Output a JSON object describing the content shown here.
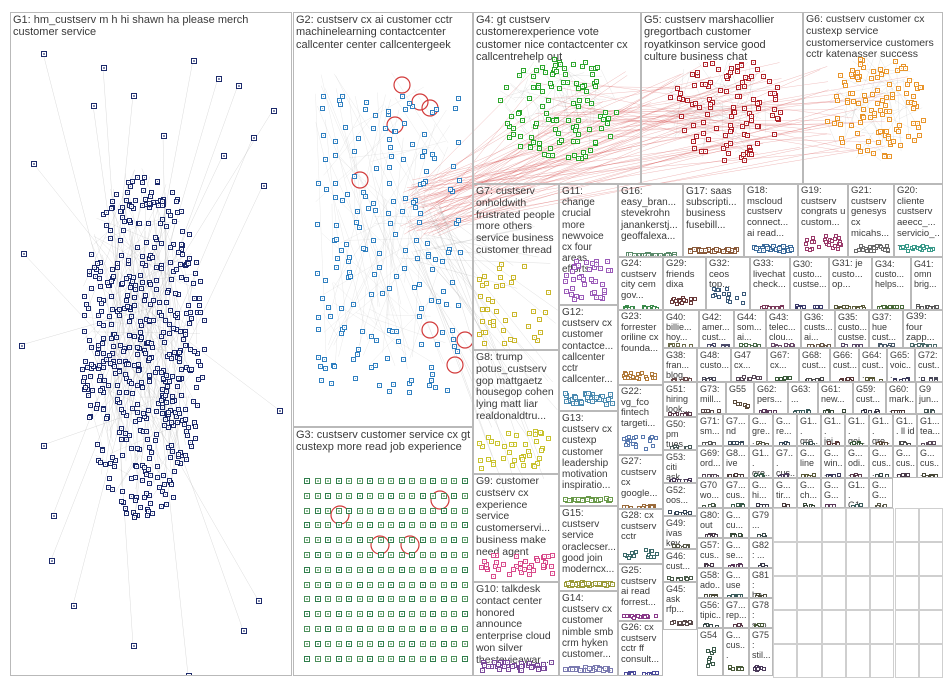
{
  "colors": {
    "border": "#b9b9b9",
    "text": "#3a3a3a",
    "edge_gray": "#9a9a9a",
    "edge_red": "#d23a3a"
  },
  "groups": [
    {
      "id": "G1",
      "label": "G1: hm_custserv m h hi shawn ha please merch customer service",
      "color": "#1c2a6b",
      "icon": "user-avatar-icon"
    },
    {
      "id": "G2",
      "label": "G2: custserv cx ai customer cctr machinelearning contactcenter callcenter center callcentergeek",
      "color": "#2f7fc0",
      "icon": "user-avatar-icon"
    },
    {
      "id": "G3",
      "label": "G3: custserv customer service cx gt custexp more read job experience",
      "color": "#2e7d4a",
      "icon": "user-avatar-icon"
    },
    {
      "id": "G4",
      "label": "G4: gt custserv customerexperience vote customer nice contactcenter cx callcentrehelp out",
      "color": "#2aa52a",
      "icon": "user-avatar-icon"
    },
    {
      "id": "G5",
      "label": "G5: custserv marshacollier gregortbach customer royatkinson service good culture business chat",
      "color": "#b0232a",
      "icon": "user-avatar-icon"
    },
    {
      "id": "G6",
      "label": "G6: custserv customer cx custexp service customerservice customers cctr katenasser success",
      "color": "#e8942a",
      "icon": "user-avatar-icon"
    },
    {
      "id": "G7",
      "label": "G7: custserv onholdwith frustrated people more others service business customer thread",
      "color": "#c9b62a",
      "icon": "user-avatar-icon"
    },
    {
      "id": "G8",
      "label": "G8: trump potus_custserv gop mattgaetz housegop cohen lying matt liar realdonaldtru...",
      "color": "#c8c22e",
      "icon": "user-avatar-icon"
    },
    {
      "id": "G9",
      "label": "G9: customer custserv cx experience service customerservi... business make need agent",
      "color": "#d84a8a",
      "icon": "user-avatar-icon"
    },
    {
      "id": "G10",
      "label": "G10: talkdesk contact center honored announce enterprise cloud won silver thestevieawar...",
      "color": "#7a4a9a",
      "icon": "user-avatar-icon"
    },
    {
      "id": "G11",
      "label": "G11: change crucial more newvoice cx four areas efforts",
      "color": "#9a5ab8",
      "icon": "user-avatar-icon"
    },
    {
      "id": "G12",
      "label": "G12: custserv cx customer contactce... callcenter cctr callcenter...",
      "color": "#4a8ab0",
      "icon": "user-avatar-icon"
    },
    {
      "id": "G13",
      "label": "G13: custserv cx custexp customer leadership motivation inspiratio...",
      "color": "#6a9a4a",
      "icon": "user-avatar-icon"
    },
    {
      "id": "G14",
      "label": "G14: custserv cx customer nimble smb crm hyken customer...",
      "color": "#7a7ab0",
      "icon": "user-avatar-icon"
    },
    {
      "id": "G15",
      "label": "G15: custserv service oraclecser... good join moderncx...",
      "color": "#9a9a3a",
      "icon": "user-avatar-icon"
    },
    {
      "id": "G16",
      "label": "G16: easy_bran... stevekrohn janankerstj... geoffalexa...",
      "color": "#5a8a6a",
      "icon": "user-avatar-icon"
    },
    {
      "id": "G17",
      "label": "G17: saas subscripti... business fusebill...",
      "color": "#8a5a3a",
      "icon": "user-avatar-icon"
    },
    {
      "id": "G18",
      "label": "G18: mscloud custserv connect... ai read...",
      "color": "#3a6a9a",
      "icon": "user-avatar-icon"
    },
    {
      "id": "G19",
      "label": "G19: custserv congrats u custom...",
      "color": "#9a3a6a",
      "icon": "user-avatar-icon"
    },
    {
      "id": "G20",
      "label": "G20: cliente custserv aeecc_... servicio_...",
      "color": "#3a9a8a",
      "icon": "user-avatar-icon"
    },
    {
      "id": "G21",
      "label": "G21: custserv genesys cx micahs...",
      "color": "#6a6a6a",
      "icon": "user-avatar-icon"
    },
    {
      "id": "G22",
      "label": "G22: vg_fco fintech targeti...",
      "color": "#5a7ab0",
      "icon": "user-avatar-icon"
    },
    {
      "id": "G23",
      "label": "G23: forrester oriline cx founda...",
      "color": "#b07a3a",
      "icon": "user-avatar-icon"
    },
    {
      "id": "G24",
      "label": "G24: custserv city cem gov...",
      "color": "#3a8a4a",
      "icon": "user-avatar-icon"
    },
    {
      "id": "G25",
      "label": "G25: custserv ai read forrest...",
      "color": "#8a3a8a",
      "icon": "user-avatar-icon"
    },
    {
      "id": "G26",
      "label": "G26: cx custserv cctr ff consult...",
      "color": "#4a4a9a",
      "icon": "user-avatar-icon"
    },
    {
      "id": "G27",
      "label": "G27: custserv cx google...",
      "color": "#9a6a3a",
      "icon": "user-avatar-icon"
    },
    {
      "id": "G28",
      "label": "G28: cx custserv cctr",
      "color": "#3a6a6a",
      "icon": "user-avatar-icon"
    },
    {
      "id": "G29",
      "label": "G29: friends dixa",
      "color": "#6a3a3a",
      "icon": "user-avatar-icon"
    },
    {
      "id": "G30",
      "label": "G30: custo... custse...",
      "color": "#3a3a6a",
      "icon": "user-avatar-icon"
    },
    {
      "id": "G31",
      "label": "G31: je custo... op...",
      "color": "#5a5a3a",
      "icon": "user-avatar-icon"
    },
    {
      "id": "G32",
      "label": "G32: ceos top...",
      "color": "#3a5a7a",
      "icon": "user-avatar-icon"
    },
    {
      "id": "G33",
      "label": "G33: livechat check...",
      "color": "#7a3a5a",
      "icon": "user-avatar-icon"
    },
    {
      "id": "G34",
      "label": "G34: custo... helps...",
      "color": "#4a6a3a",
      "icon": "user-avatar-icon"
    },
    {
      "id": "G35",
      "label": "G35: custo... custse...",
      "color": "#5a4a6a",
      "icon": "user-avatar-icon"
    },
    {
      "id": "G36",
      "label": "G36: custs... ai...",
      "color": "#6a5a4a",
      "icon": "user-avatar-icon"
    },
    {
      "id": "G37",
      "label": "G37: hue cust...",
      "color": "#4a5a6a",
      "icon": "user-avatar-icon"
    },
    {
      "id": "G38",
      "label": "G38: fran... blog...",
      "color": "#6a4a4a",
      "icon": "user-avatar-icon"
    },
    {
      "id": "G39",
      "label": "G39: four zapp...",
      "color": "#4a6a6a",
      "icon": "user-avatar-icon"
    },
    {
      "id": "G40",
      "label": "G40: billie... hoy...",
      "color": "#6a6a4a",
      "icon": "user-avatar-icon"
    },
    {
      "id": "G41",
      "label": "G41: omn brig...",
      "color": "#5a5a5a",
      "icon": "user-avatar-icon"
    },
    {
      "id": "G42",
      "label": "G42: amer... cust...",
      "color": "#4a4a6a",
      "icon": "user-avatar-icon"
    },
    {
      "id": "G43",
      "label": "G43: telec... clou...",
      "color": "#6a4a6a",
      "icon": "user-avatar-icon"
    },
    {
      "id": "G44",
      "label": "G44: som... ai...",
      "color": "#4a6a4a",
      "icon": "user-avatar-icon"
    },
    {
      "id": "G45",
      "label": "G45: ask rfp...",
      "color": "#5a4a4a",
      "icon": "user-avatar-icon"
    },
    {
      "id": "G46",
      "label": "G46: cust...",
      "color": "#4a5a4a",
      "icon": "user-avatar-icon"
    },
    {
      "id": "G47",
      "label": "G47 cx...",
      "color": "#5a4a5a",
      "icon": "user-avatar-icon"
    },
    {
      "id": "G48",
      "label": "G48: custo...",
      "color": "#4a4a5a",
      "icon": "user-avatar-icon"
    },
    {
      "id": "G49",
      "label": "G49: ivas key...",
      "color": "#5a5a4a",
      "icon": "user-avatar-icon"
    },
    {
      "id": "G50",
      "label": "G50: pm tues...",
      "color": "#4a5a5a",
      "icon": "user-avatar-icon"
    },
    {
      "id": "G51",
      "label": "G51: hiring look...",
      "color": "#5a3a4a",
      "icon": "user-avatar-icon"
    },
    {
      "id": "G52",
      "label": "G52: oos...",
      "color": "#3a4a5a",
      "icon": "user-avatar-icon"
    },
    {
      "id": "G53",
      "label": "G53: citi ask...",
      "color": "#4a3a5a",
      "icon": "user-avatar-icon"
    },
    {
      "id": "G54",
      "label": "G54",
      "color": "#3a5a4a",
      "icon": "user-avatar-icon"
    },
    {
      "id": "G55",
      "label": "G55",
      "color": "#5a4a3a",
      "icon": "user-avatar-icon"
    },
    {
      "id": "G56",
      "label": "G56: tipic...",
      "color": "#3a4a4a",
      "icon": "user-avatar-icon"
    },
    {
      "id": "G57",
      "label": "G57: cus...",
      "color": "#4a3a4a",
      "icon": "user-avatar-icon"
    },
    {
      "id": "G58",
      "label": "G58: ado...",
      "color": "#4a4a3a",
      "icon": "user-avatar-icon"
    },
    {
      "id": "G59",
      "label": "G59: cust...",
      "color": "#3a3a4a",
      "icon": "user-avatar-icon"
    },
    {
      "id": "G60",
      "label": "G60: mark...",
      "color": "#4a3a3a",
      "icon": "user-avatar-icon"
    },
    {
      "id": "G61",
      "label": "G61: new...",
      "color": "#3a4a3a",
      "icon": "user-avatar-icon"
    },
    {
      "id": "G62",
      "label": "G62: pers...",
      "color": "#5a3a5a",
      "icon": "user-avatar-icon"
    },
    {
      "id": "G63",
      "label": "G63: ...",
      "color": "#3a5a5a",
      "icon": "user-avatar-icon"
    },
    {
      "id": "G64",
      "label": "G64: cust...",
      "color": "#5a5a3a",
      "icon": "user-avatar-icon"
    },
    {
      "id": "G65",
      "label": "G65: voic...",
      "color": "#3a3a5a",
      "icon": "user-avatar-icon"
    },
    {
      "id": "G66",
      "label": "G66: cust...",
      "color": "#5a3a3a",
      "icon": "user-avatar-icon"
    },
    {
      "id": "G67",
      "label": "G67: cx...",
      "color": "#3a5a3a",
      "icon": "user-avatar-icon"
    },
    {
      "id": "G68",
      "label": "G68: cust...",
      "color": "#4a4a4a",
      "icon": "user-avatar-icon"
    },
    {
      "id": "G69",
      "label": "G69: ord...",
      "color": "#5a4a5a",
      "icon": "user-avatar-icon"
    },
    {
      "id": "G70",
      "label": "G70 wo...",
      "color": "#4a5a4a",
      "icon": "user-avatar-icon"
    },
    {
      "id": "G71",
      "label": "G71: sm...",
      "color": "#5a5a5a",
      "icon": "user-avatar-icon"
    },
    {
      "id": "G72",
      "label": "G72: cust...",
      "color": "#4a4a5a",
      "icon": "user-avatar-icon"
    },
    {
      "id": "G73",
      "label": "G73: mill...",
      "color": "#5a4a4a",
      "icon": "user-avatar-icon"
    },
    {
      "id": "G74",
      "label": "G7... nd",
      "color": "#3a4a5a",
      "icon": "user-avatar-icon"
    },
    {
      "id": "G75",
      "label": "G75: stil...",
      "color": "#4a3a5a",
      "icon": "user-avatar-icon"
    },
    {
      "id": "G76",
      "label": "G7... cus...",
      "color": "#3a5a4a",
      "icon": "user-avatar-icon"
    },
    {
      "id": "G77",
      "label": "G7... rep...",
      "color": "#5a3a4a",
      "icon": "user-avatar-icon"
    },
    {
      "id": "G78",
      "label": "G78: sup...",
      "color": "#4a5a3a",
      "icon": "user-avatar-icon"
    },
    {
      "id": "G79",
      "label": "G79 ...",
      "color": "#3a4a4a",
      "icon": "user-avatar-icon"
    },
    {
      "id": "G80",
      "label": "G80: out",
      "color": "#4a3a4a",
      "icon": "user-avatar-icon"
    },
    {
      "id": "G81",
      "label": "G81: ba...",
      "color": "#4a4a3a",
      "icon": "user-avatar-icon"
    },
    {
      "id": "G82",
      "label": "G82: ...",
      "color": "#3a3a4a",
      "icon": "user-avatar-icon"
    },
    {
      "id": "G83",
      "label": "G8... ive",
      "color": "#4a3a3a",
      "icon": "user-avatar-icon"
    },
    {
      "id": "G84",
      "label": "G... cu...",
      "color": "#3a4a3a",
      "icon": "user-avatar-icon"
    },
    {
      "id": "G85",
      "label": "G... se...",
      "color": "#5a3a5a",
      "icon": "user-avatar-icon"
    },
    {
      "id": "G86",
      "label": "G... use",
      "color": "#3a5a5a",
      "icon": "user-avatar-icon"
    },
    {
      "id": "G87",
      "label": "G... gre...",
      "color": "#5a5a4a",
      "icon": "user-avatar-icon"
    },
    {
      "id": "G88",
      "label": "G1... gre...",
      "color": "#4a5a5a",
      "icon": "user-avatar-icon"
    },
    {
      "id": "G89",
      "label": "G1... gre...",
      "color": "#5a4a3a",
      "icon": "user-avatar-icon"
    },
    {
      "id": "G90",
      "label": "G... re...",
      "color": "#3a4a5a",
      "icon": "user-avatar-icon"
    },
    {
      "id": "G91",
      "label": "G... cus...",
      "color": "#4a5a3a",
      "icon": "user-avatar-icon"
    },
    {
      "id": "G92",
      "label": "G1... joi...",
      "color": "#5a3a3a",
      "icon": "user-avatar-icon"
    },
    {
      "id": "G93",
      "label": "G1... goi...",
      "color": "#3a5a3a",
      "icon": "user-avatar-icon"
    },
    {
      "id": "G94",
      "label": "G1... ll id",
      "color": "#4a4a4a",
      "icon": "user-avatar-icon"
    },
    {
      "id": "G95",
      "label": "G1... tea...",
      "color": "#5a4a5a",
      "icon": "user-avatar-icon"
    },
    {
      "id": "G96",
      "label": "G1... gre...",
      "color": "#3a5a4a",
      "icon": "user-avatar-icon"
    },
    {
      "id": "G97",
      "label": "G7... cus...",
      "color": "#4a3a5a",
      "icon": "user-avatar-icon"
    },
    {
      "id": "G98",
      "label": "G... line",
      "color": "#5a5a3a",
      "icon": "user-avatar-icon"
    },
    {
      "id": "G99",
      "label": "G... win...",
      "color": "#3a3a5a",
      "icon": "user-avatar-icon"
    },
    {
      "id": "G100",
      "label": "G... odi...",
      "color": "#5a3a4a",
      "icon": "user-avatar-icon"
    },
    {
      "id": "G101",
      "label": "G... cus...",
      "color": "#3a4a4a",
      "icon": "user-avatar-icon"
    },
    {
      "id": "G102",
      "label": "G... cus...",
      "color": "#4a3a4a",
      "icon": "user-avatar-icon"
    },
    {
      "id": "G103",
      "label": "G... cus...",
      "color": "#4a4a3a",
      "icon": "user-avatar-icon"
    },
    {
      "id": "G104",
      "label": "G... hi...",
      "color": "#3a3a4a",
      "icon": "user-avatar-icon"
    },
    {
      "id": "G105",
      "label": "G... tir...",
      "color": "#4a3a3a",
      "icon": "user-avatar-icon"
    },
    {
      "id": "G106",
      "label": "G... ch...",
      "color": "#3a4a3a",
      "icon": "user-avatar-icon"
    },
    {
      "id": "G107",
      "label": "G... G...",
      "color": "#5a3a5a",
      "icon": "user-avatar-icon"
    },
    {
      "id": "G108",
      "label": "G1... G1...",
      "color": "#3a5a5a",
      "icon": "user-avatar-icon"
    },
    {
      "id": "G109",
      "label": "G... G...",
      "color": "#5a5a4a",
      "icon": "user-avatar-icon"
    },
    {
      "id": "G110",
      "label": "G9 jun...",
      "color": "#4a5a5a",
      "icon": "user-avatar-icon"
    }
  ]
}
